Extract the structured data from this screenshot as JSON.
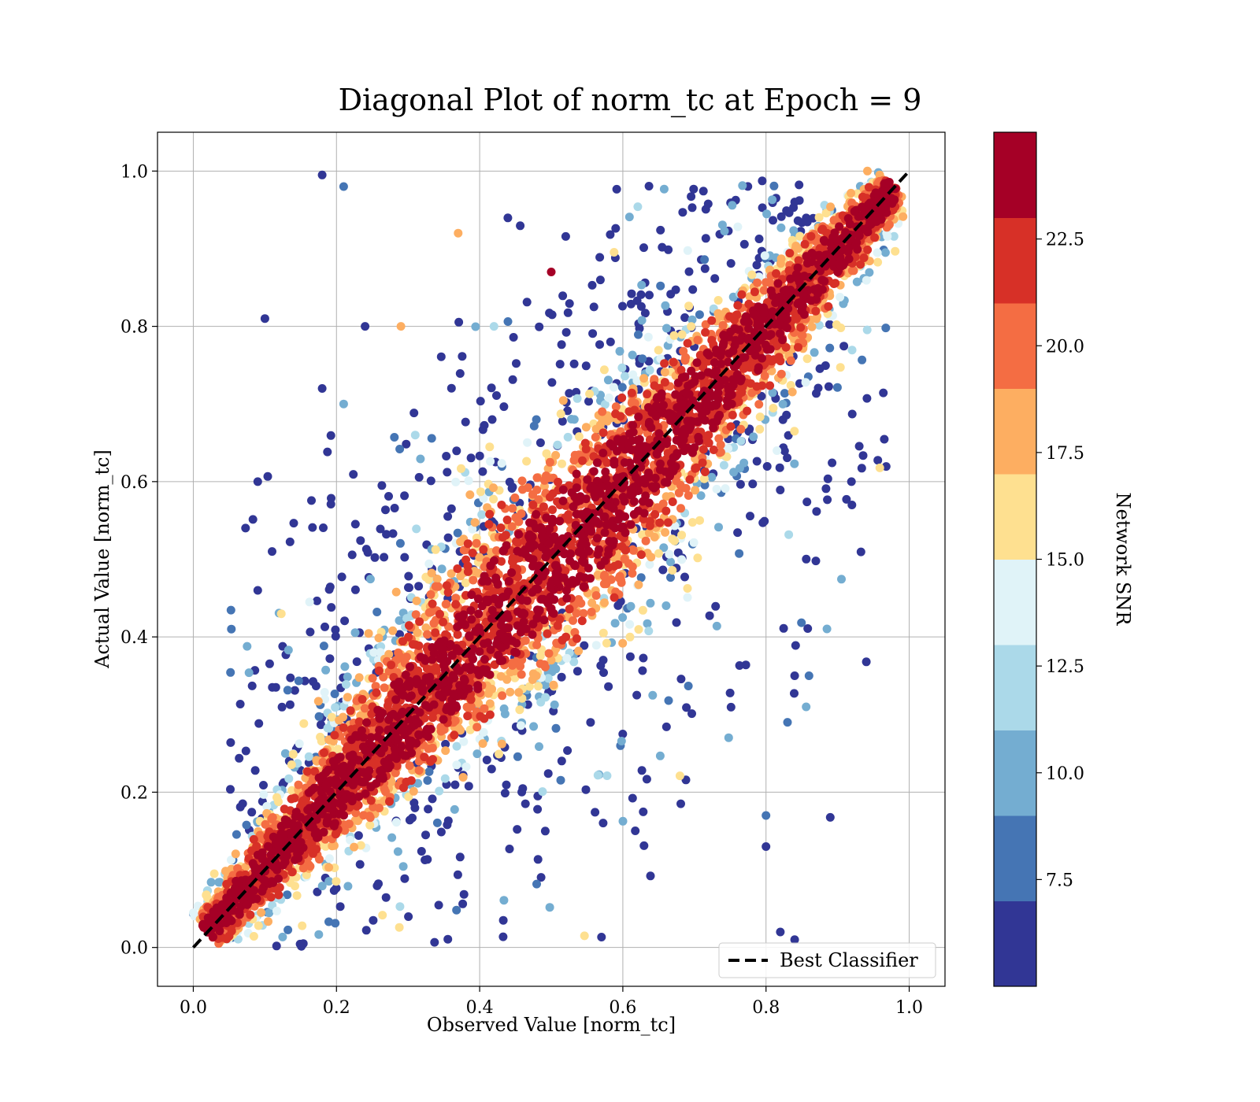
{
  "chart_data": {
    "type": "scatter",
    "title": "Diagonal Plot of norm_tc at Epoch = 9",
    "xlabel": "Observed Value [norm_tc]",
    "ylabel": "Actual Value [norm_tc]",
    "xlim": [
      -0.05,
      1.05
    ],
    "ylim": [
      -0.05,
      1.05
    ],
    "xticks": [
      0.0,
      0.2,
      0.4,
      0.6,
      0.8,
      1.0
    ],
    "yticks": [
      0.0,
      0.2,
      0.4,
      0.6,
      0.8,
      1.0
    ],
    "xtick_labels": [
      "0.0",
      "0.2",
      "0.4",
      "0.6",
      "0.8",
      "1.0"
    ],
    "ytick_labels": [
      "0.0",
      "0.2",
      "0.4",
      "0.6",
      "0.8",
      "1.0"
    ],
    "grid": true,
    "reference_line": {
      "name": "Best Classifier",
      "x": [
        0.0,
        1.0
      ],
      "y": [
        0.0,
        1.0
      ],
      "style": "dashed",
      "color": "#000000"
    },
    "legend": {
      "entries": [
        "Best Classifier"
      ],
      "placement": "lower-right"
    },
    "colorbar": {
      "label": "Network SNR",
      "range": [
        5.0,
        25.0
      ],
      "ticks": [
        7.5,
        10.0,
        12.5,
        15.0,
        17.5,
        20.0,
        22.5
      ],
      "tick_labels": [
        "7.5",
        "10.0",
        "12.5",
        "15.0",
        "17.5",
        "20.0",
        "22.5"
      ],
      "colors": [
        "#313695",
        "#4575b4",
        "#74add1",
        "#abd9e9",
        "#e0f3f8",
        "#fee090",
        "#fdae61",
        "#f46d43",
        "#d73027",
        "#a50026"
      ]
    },
    "points_description": "dense band along y = x with high SNR (red); scattered low-SNR (blue) points off-diagonal",
    "sample_points": [
      {
        "x": 0.18,
        "y": 0.995,
        "snr": 6.0
      },
      {
        "x": 0.21,
        "y": 0.98,
        "snr": 8.0
      },
      {
        "x": 0.1,
        "y": 0.81,
        "snr": 6.0
      },
      {
        "x": 0.24,
        "y": 0.8,
        "snr": 6.0
      },
      {
        "x": 0.18,
        "y": 0.72,
        "snr": 6.0
      },
      {
        "x": 0.21,
        "y": 0.7,
        "snr": 10.0
      },
      {
        "x": 0.09,
        "y": 0.6,
        "snr": 6.0
      },
      {
        "x": 0.11,
        "y": 0.51,
        "snr": 6.0
      },
      {
        "x": 0.09,
        "y": 0.46,
        "snr": 6.0
      },
      {
        "x": 0.92,
        "y": 0.57,
        "snr": 6.0
      },
      {
        "x": 0.84,
        "y": 0.35,
        "snr": 6.0
      },
      {
        "x": 0.86,
        "y": 0.35,
        "snr": 8.0
      },
      {
        "x": 0.83,
        "y": 0.29,
        "snr": 8.0
      },
      {
        "x": 0.8,
        "y": 0.17,
        "snr": 8.0
      },
      {
        "x": 0.8,
        "y": 0.13,
        "snr": 6.0
      },
      {
        "x": 0.82,
        "y": 0.02,
        "snr": 6.0
      },
      {
        "x": 0.84,
        "y": 0.01,
        "snr": 6.0
      },
      {
        "x": 0.5,
        "y": 0.87,
        "snr": 24.0
      },
      {
        "x": 0.77,
        "y": 0.73,
        "snr": 20.0
      },
      {
        "x": 0.37,
        "y": 0.92,
        "snr": 18.0
      },
      {
        "x": 0.29,
        "y": 0.8,
        "snr": 17.0
      },
      {
        "x": 0.31,
        "y": 0.66,
        "snr": 12.0
      },
      {
        "x": 0.42,
        "y": 0.8,
        "snr": 12.0
      }
    ]
  }
}
